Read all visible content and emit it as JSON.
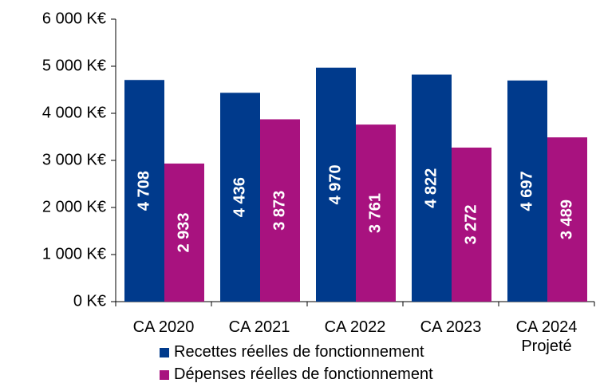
{
  "chart_data": {
    "type": "bar",
    "categories": [
      "CA 2020",
      "CA 2021",
      "CA 2022",
      "CA 2023",
      "CA 2024 Projeté"
    ],
    "series": [
      {
        "name": "Recettes réelles de fonctionnement",
        "color": "#003a8c",
        "values": [
          4708,
          4436,
          4970,
          4822,
          4697
        ],
        "value_labels": [
          "4 708",
          "4 436",
          "4 970",
          "4 822",
          "4 697"
        ]
      },
      {
        "name": "Dépenses réelles de fonctionnement",
        "color": "#a8127f",
        "values": [
          2933,
          3873,
          3761,
          3272,
          3489
        ],
        "value_labels": [
          "2 933",
          "3 873",
          "3 761",
          "3 272",
          "3 489"
        ]
      }
    ],
    "ylim": [
      0,
      6000
    ],
    "yticks": [
      {
        "value": 0,
        "label": "0 K€"
      },
      {
        "value": 1000,
        "label": "1 000 K€"
      },
      {
        "value": 2000,
        "label": "2 000 K€"
      },
      {
        "value": 3000,
        "label": "3 000 K€"
      },
      {
        "value": 4000,
        "label": "4 000 K€"
      },
      {
        "value": 5000,
        "label": "5 000 K€"
      },
      {
        "value": 6000,
        "label": "6 000 K€"
      }
    ],
    "legend": "bottom"
  }
}
